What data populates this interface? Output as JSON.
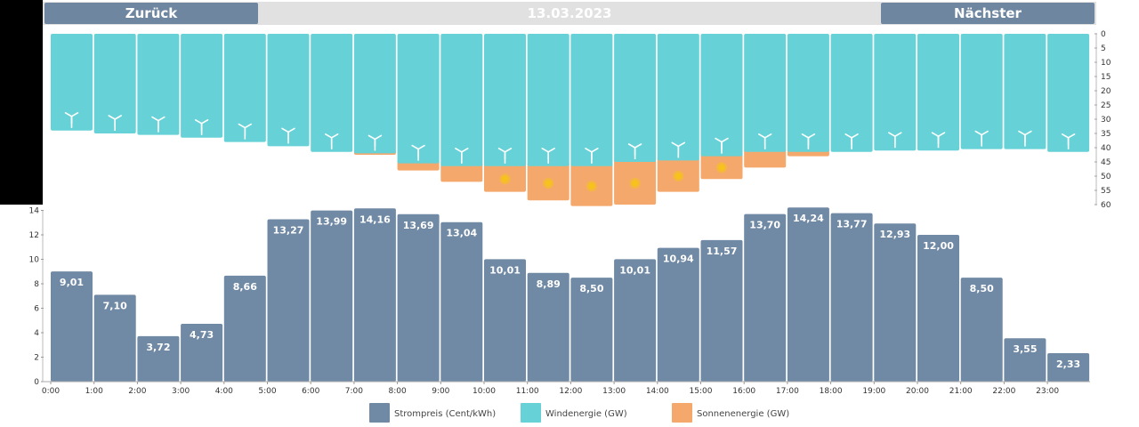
{
  "header": {
    "back_label": "Zurück",
    "next_label": "Nächster",
    "date": "13.03.2023"
  },
  "colors": {
    "price": "#7089a4",
    "wind": "#66d2d7",
    "solar": "#f4a86c",
    "sun": "#f7c21b",
    "header_button": "#6f86a1",
    "header_bar": "#e1e1e1"
  },
  "chart_data": [
    {
      "type": "bar",
      "categories": [
        "0:00",
        "1:00",
        "2:00",
        "3:00",
        "4:00",
        "5:00",
        "6:00",
        "7:00",
        "8:00",
        "9:00",
        "10:00",
        "11:00",
        "12:00",
        "13:00",
        "14:00",
        "15:00",
        "16:00",
        "17:00",
        "18:00",
        "19:00",
        "20:00",
        "21:00",
        "22:00",
        "23:00"
      ],
      "y_axis_inverted": true,
      "ylim": [
        0,
        60
      ],
      "y_ticks": [
        0,
        5,
        10,
        15,
        20,
        25,
        30,
        35,
        40,
        45,
        50,
        55,
        60
      ],
      "series": [
        {
          "name": "Windenergie (GW)",
          "stacked": true,
          "icon": "wind-turbine-icon",
          "values": [
            34,
            35,
            35.5,
            36.5,
            38,
            39.5,
            41.5,
            42,
            45.5,
            46.5,
            46.5,
            46.5,
            46.5,
            45,
            44.5,
            43,
            41.5,
            41.5,
            41.5,
            41,
            41,
            40.5,
            40.5,
            41.5
          ]
        },
        {
          "name": "Sonnenenergie (GW)",
          "stacked": true,
          "icon": "sun-icon",
          "values": [
            0,
            0,
            0,
            0,
            0,
            0,
            0,
            0.5,
            2.5,
            5.5,
            9,
            12,
            14,
            15,
            11,
            8,
            5.5,
            1.5,
            0,
            0,
            0,
            0,
            0,
            0
          ]
        }
      ]
    },
    {
      "type": "bar",
      "categories": [
        "0:00",
        "1:00",
        "2:00",
        "3:00",
        "4:00",
        "5:00",
        "6:00",
        "7:00",
        "8:00",
        "9:00",
        "10:00",
        "11:00",
        "12:00",
        "13:00",
        "14:00",
        "15:00",
        "16:00",
        "17:00",
        "18:00",
        "19:00",
        "20:00",
        "21:00",
        "22:00",
        "23:00"
      ],
      "ylim": [
        0,
        14
      ],
      "y_ticks": [
        0,
        2,
        4,
        6,
        8,
        10,
        12,
        14
      ],
      "series": [
        {
          "name": "Strompreis (Cent/kWh)",
          "values": [
            9.01,
            7.1,
            3.72,
            4.73,
            8.66,
            13.27,
            13.99,
            14.16,
            13.69,
            13.04,
            10.01,
            8.89,
            8.5,
            10.01,
            10.94,
            11.57,
            13.7,
            14.24,
            13.77,
            12.93,
            12.0,
            8.5,
            3.55,
            2.33
          ],
          "labels": [
            "9,01",
            "7,10",
            "3,72",
            "4,73",
            "8,66",
            "13,27",
            "13,99",
            "14,16",
            "13,69",
            "13,04",
            "10,01",
            "8,89",
            "8,50",
            "10,01",
            "10,94",
            "11,57",
            "13,70",
            "14,24",
            "13,77",
            "12,93",
            "12,00",
            "8,50",
            "3,55",
            "2,33"
          ]
        }
      ]
    }
  ],
  "legend": [
    {
      "label": "Strompreis (Cent/kWh)",
      "color": "#7089a4"
    },
    {
      "label": "Windenergie (GW)",
      "color": "#66d2d7"
    },
    {
      "label": "Sonnenenergie (GW)",
      "color": "#f4a86c"
    }
  ]
}
